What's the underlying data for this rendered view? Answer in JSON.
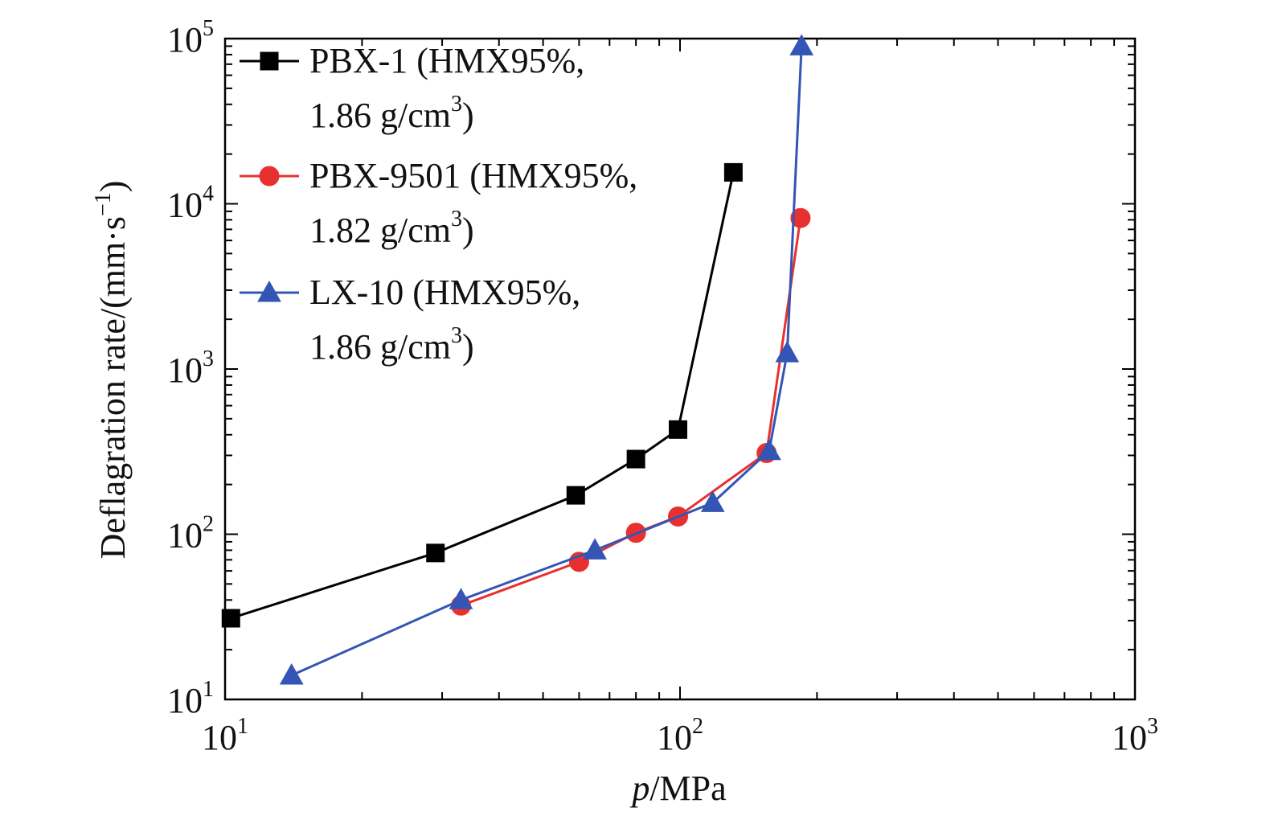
{
  "chart_data": {
    "type": "line",
    "xscale": "log",
    "yscale": "log",
    "xlim": [
      10,
      1000
    ],
    "ylim": [
      10,
      100000
    ],
    "grid": false,
    "legend_position": "top-left",
    "xlabel": {
      "prefix": "p",
      "suffix": "/MPa"
    },
    "ylabel": {
      "main": "Deflagration rate/(mm·s",
      "sup": "−1",
      "end": ")"
    },
    "x_ticks": [
      {
        "value": 10,
        "base": "10",
        "exp": "1"
      },
      {
        "value": 100,
        "base": "10",
        "exp": "2"
      },
      {
        "value": 1000,
        "base": "10",
        "exp": "3"
      }
    ],
    "y_ticks": [
      {
        "value": 10,
        "base": "10",
        "exp": "1"
      },
      {
        "value": 100,
        "base": "10",
        "exp": "2"
      },
      {
        "value": 1000,
        "base": "10",
        "exp": "3"
      },
      {
        "value": 10000,
        "base": "10",
        "exp": "4"
      },
      {
        "value": 100000,
        "base": "10",
        "exp": "5"
      }
    ],
    "series": [
      {
        "name_line1": "PBX-1 (HMX95%,",
        "name_line2": "1.86 g/cm",
        "name_sup": "3",
        "name_end": ")",
        "color": "#000000",
        "marker": "square",
        "x": [
          10.3,
          29,
          59,
          80,
          99,
          131
        ],
        "y": [
          31,
          77,
          172,
          285,
          430,
          15500
        ]
      },
      {
        "name_line1": "PBX-9501 (HMX95%,",
        "name_line2": "1.82 g/cm",
        "name_sup": "3",
        "name_end": ")",
        "color": "#e8312f",
        "marker": "circle",
        "x": [
          33,
          60,
          80,
          99,
          155,
          184
        ],
        "y": [
          37,
          68,
          102,
          128,
          310,
          8200
        ]
      },
      {
        "name_line1": "LX-10 (HMX95%,",
        "name_line2": "1.86 g/cm",
        "name_sup": "3",
        "name_end": ")",
        "color": "#3355b5",
        "marker": "triangle",
        "x": [
          14,
          33,
          65,
          118,
          157,
          172,
          185
        ],
        "y": [
          14,
          40,
          80,
          155,
          320,
          1250,
          90000
        ]
      }
    ]
  }
}
